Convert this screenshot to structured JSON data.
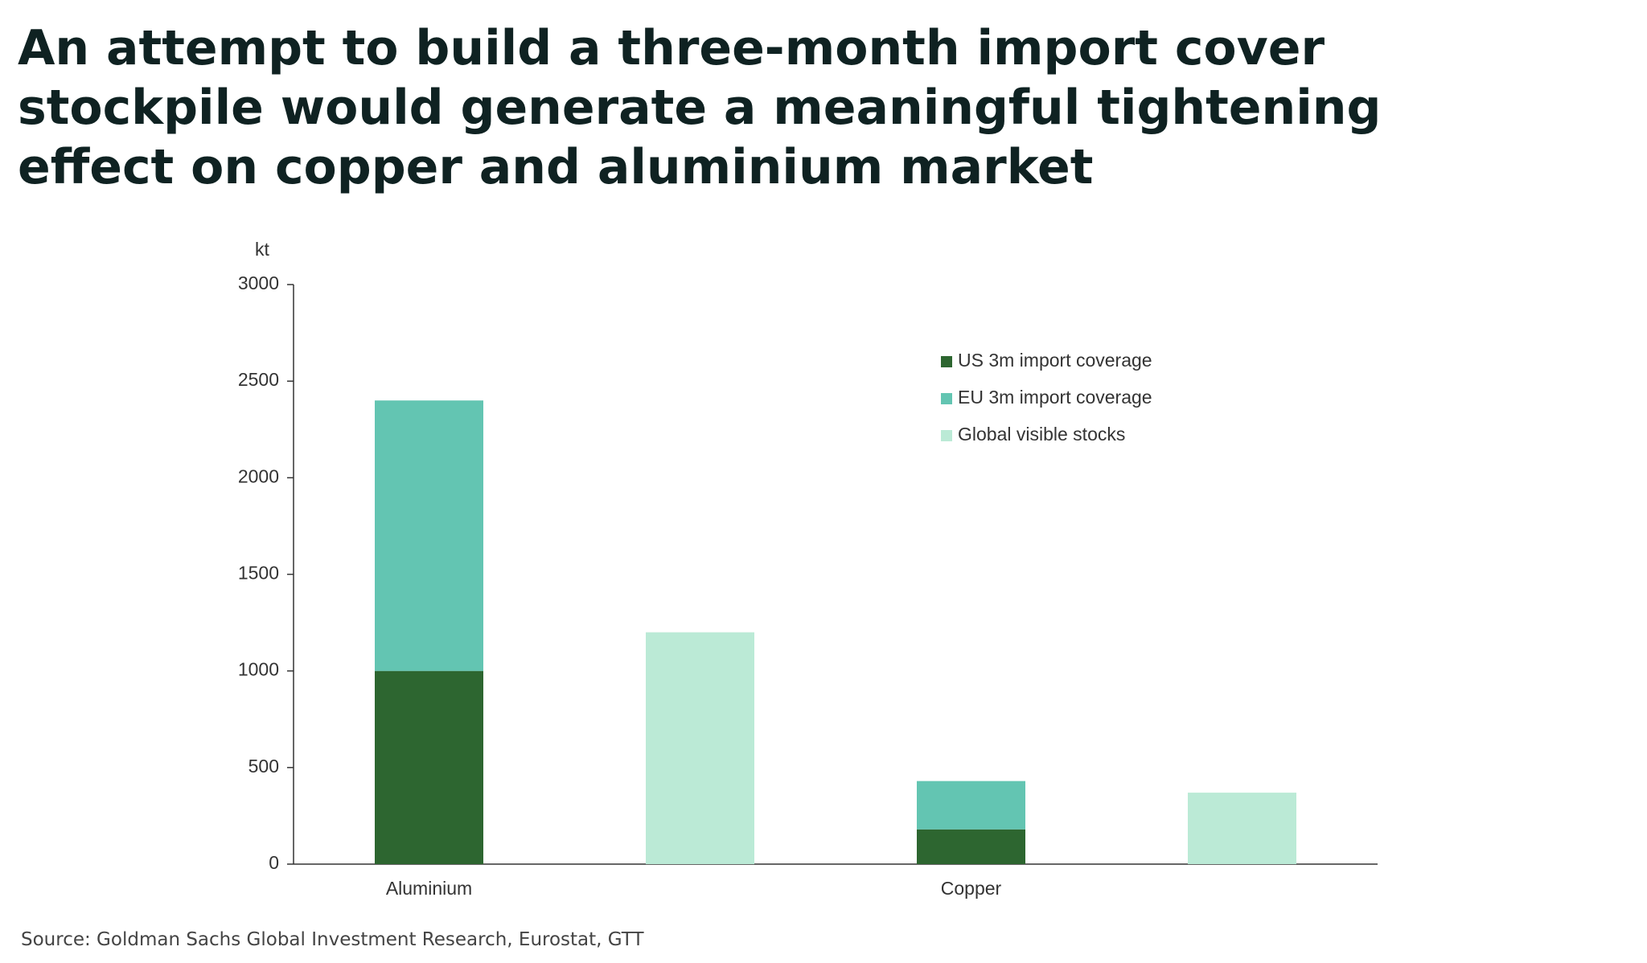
{
  "chart_data": {
    "type": "bar",
    "stacked": true,
    "title": [
      "An attempt to build a three-month import cover",
      "stockpile would generate a meaningful tightening",
      "effect on copper and aluminium market"
    ],
    "y_label": "kt",
    "source": "Source: Goldman Sachs Global Investment Research, Eurostat, GTT",
    "categories": [
      "Aluminium",
      null,
      "Copper",
      null
    ],
    "series": [
      {
        "name": "US 3m import coverage",
        "color": "#2d6630",
        "values": [
          1000,
          null,
          180,
          null
        ]
      },
      {
        "name": "EU 3m import coverage",
        "color": "#63c5b2",
        "values": [
          1400,
          null,
          250,
          null
        ]
      },
      {
        "name": "Global visible stocks",
        "color": "#bbead6",
        "values": [
          null,
          1200,
          null,
          370
        ]
      }
    ],
    "ylim": [
      0,
      3000
    ],
    "yticks": [
      0,
      500,
      1000,
      1500,
      2000,
      2500,
      3000
    ],
    "grid": false
  }
}
